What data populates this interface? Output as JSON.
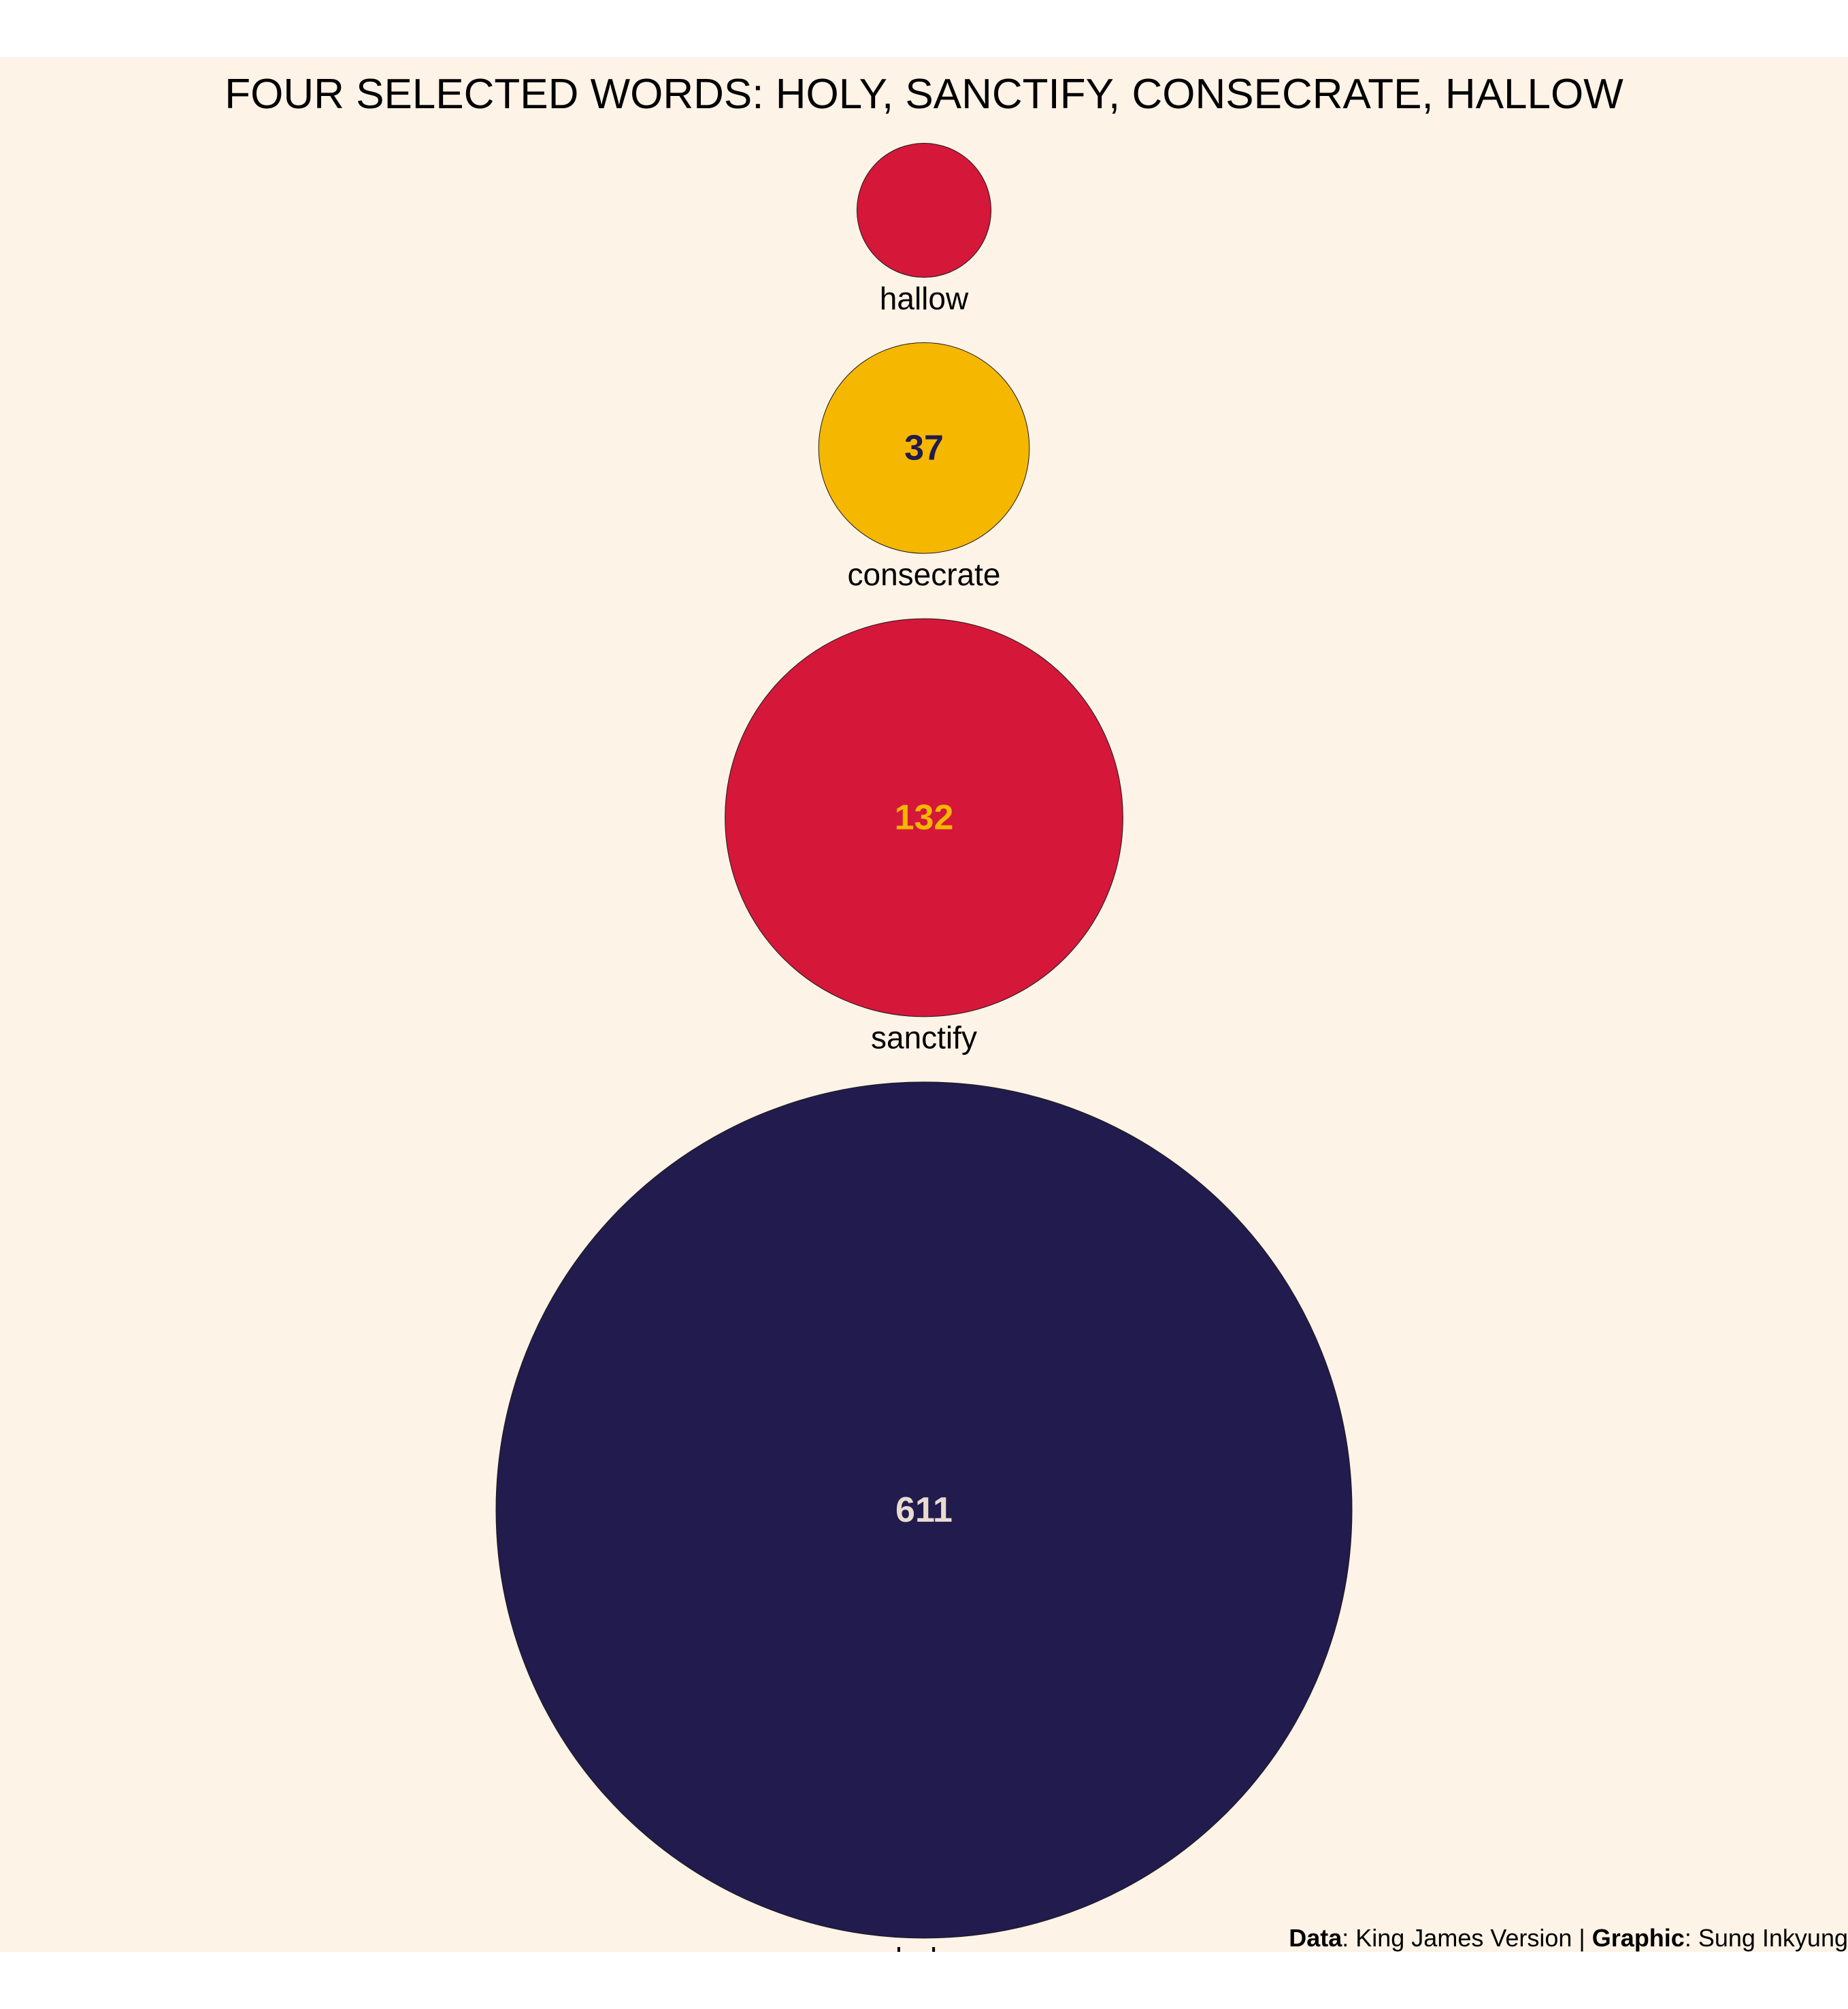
{
  "chart_data": {
    "type": "bubble",
    "title": "FOUR SELECTED WORDS: HOLY, SANCTIFY, CONSECRATE, HALLOW",
    "categories": [
      "hallow",
      "consecrate",
      "sanctify",
      "holy"
    ],
    "values": [
      15,
      37,
      132,
      611
    ],
    "colors": {
      "hallow": "#d5173a",
      "consecrate": "#f5b700",
      "sanctify": "#d5173a",
      "holy": "#221b4d"
    },
    "label_colors": {
      "hallow": "#d5173a",
      "consecrate": "#221b4d",
      "sanctify": "#f5b700",
      "holy": "#e8dcd0"
    },
    "background": "#fdf3e7"
  },
  "caption": {
    "data_label": "Data",
    "data_value": ": King James  Version | ",
    "graphic_label": "Graphic",
    "graphic_value": ": Sung Inkyung"
  }
}
